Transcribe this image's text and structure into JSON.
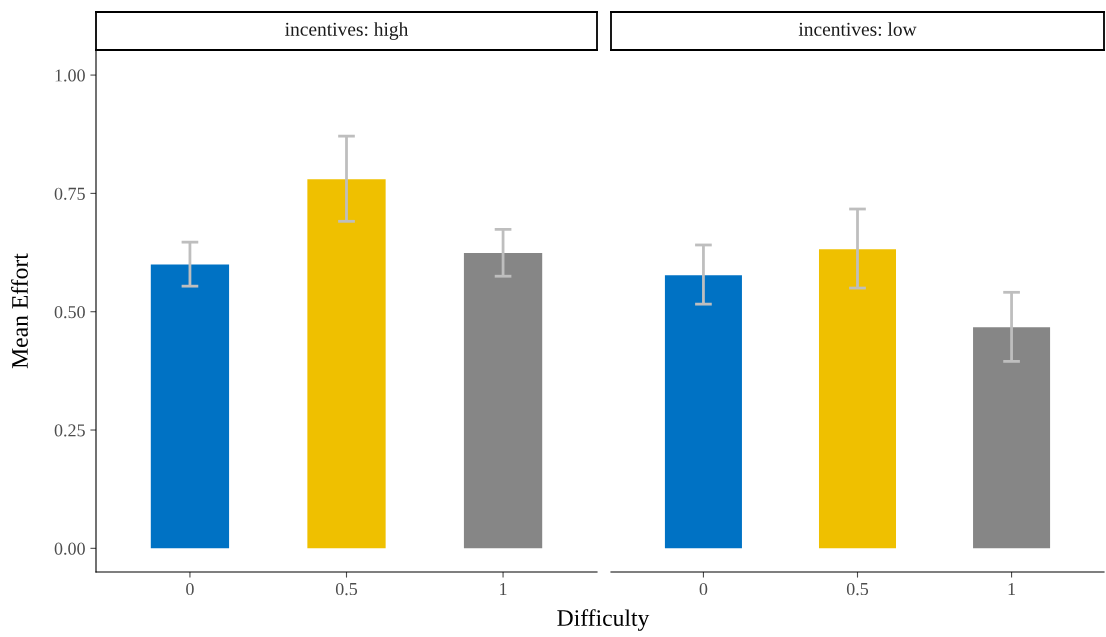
{
  "chart_data": [
    {
      "type": "bar",
      "title": "incentives: high",
      "xlabel": "Difficulty",
      "ylabel": "Mean Effort",
      "categories": [
        "0",
        "0.5",
        "1"
      ],
      "values": [
        0.6,
        0.78,
        0.624
      ],
      "colors": [
        "#0072c4",
        "#efc000",
        "#868686"
      ],
      "errors": [
        [
          0.554,
          0.647
        ],
        [
          0.691,
          0.871
        ],
        [
          0.575,
          0.674
        ]
      ],
      "ylim": [
        -0.05,
        1.053
      ],
      "yticks": [
        {
          "value": 0,
          "label": "0.00"
        },
        {
          "value": 0.25,
          "label": "0.25"
        },
        {
          "value": 0.5,
          "label": "0.50"
        },
        {
          "value": 0.75,
          "label": "0.75"
        },
        {
          "value": 1,
          "label": "1.00"
        }
      ],
      "grid": false,
      "legend": false
    },
    {
      "type": "bar",
      "title": "incentives: low",
      "categories": [
        "0",
        "0.5",
        "1"
      ],
      "values": [
        0.577,
        0.632,
        0.467
      ],
      "colors": [
        "#0072c4",
        "#efc000",
        "#868686"
      ],
      "errors": [
        [
          0.516,
          0.641
        ],
        [
          0.55,
          0.717
        ],
        [
          0.395,
          0.541
        ]
      ],
      "ylim": [
        -0.05,
        1.053
      ],
      "yticks": [
        {
          "value": 0,
          "label": null
        },
        {
          "value": 0.25,
          "label": null
        },
        {
          "value": 0.5,
          "label": null
        },
        {
          "value": 0.75,
          "label": null
        },
        {
          "value": 1,
          "label": null
        }
      ],
      "tick_labels": "x",
      "grid": false,
      "legend": false
    }
  ]
}
